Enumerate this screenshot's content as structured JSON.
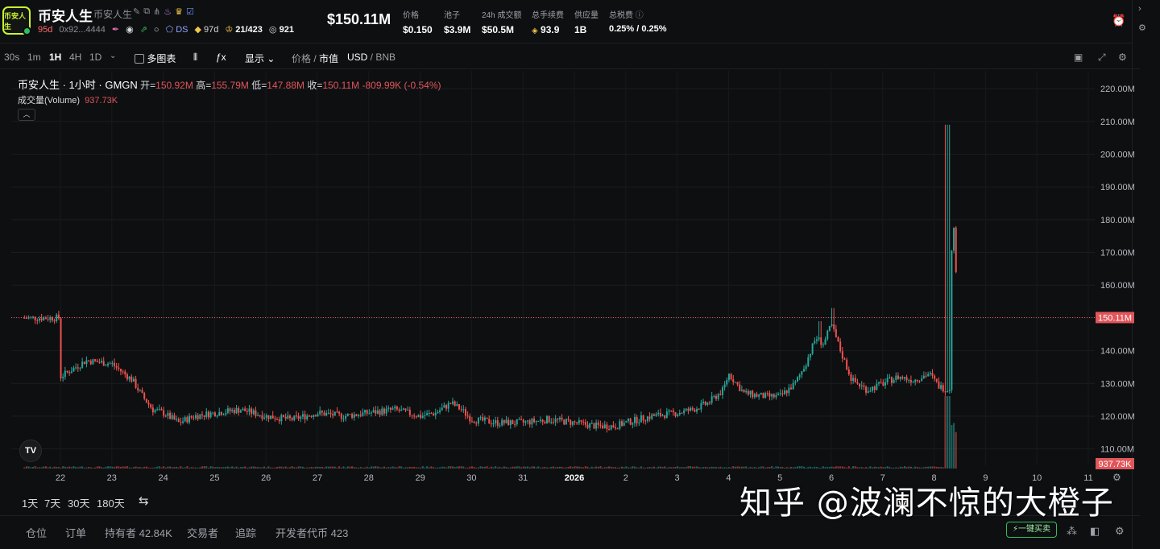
{
  "token": {
    "logo_text": "币安人生",
    "name": "币安人生",
    "subname": "币安人生",
    "age": "95d",
    "address": "0x92...4444",
    "ds_label": "DS",
    "holder_age": "97d",
    "top_count": "21/423",
    "views": "921"
  },
  "stats": {
    "market_cap": "$150.11M",
    "items": [
      {
        "label": "价格",
        "value": "$0.150"
      },
      {
        "label": "池子",
        "value": "$3.9M"
      },
      {
        "label": "24h 成交额",
        "value": "$50.5M"
      },
      {
        "label": "总手续费",
        "value": "93.9"
      },
      {
        "label": "供应量",
        "value": "1B"
      },
      {
        "label": "总税费",
        "value": "0.25% / 0.25%"
      }
    ]
  },
  "toolbar": {
    "intervals": [
      "30s",
      "1m",
      "1H",
      "4H",
      "1D"
    ],
    "active_interval": "1H",
    "multi_chart": "多图表",
    "display": "显示",
    "price_label": "价格",
    "mcap_label": "市值",
    "usd": "USD",
    "bnb": "BNB"
  },
  "legend": {
    "title": "币安人生 · 1小时 · GMGN",
    "open_label": "开=",
    "open": "150.92M",
    "high_label": "高=",
    "high": "155.79M",
    "low_label": "低=",
    "low": "147.88M",
    "close_label": "收=",
    "close": "150.11M",
    "change": "-809.99K (-0.54%)",
    "volume_label": "成交量(Volume)",
    "volume": "937.73K"
  },
  "chart_data": {
    "type": "candlestick",
    "y_unit": "M",
    "ylim": [
      105,
      222
    ],
    "y_ticks": [
      "220.00M",
      "210.00M",
      "200.00M",
      "190.00M",
      "180.00M",
      "170.00M",
      "160.00M",
      "150.00M",
      "140.00M",
      "130.00M",
      "120.00M",
      "110.00M"
    ],
    "x_ticks": [
      "22",
      "23",
      "24",
      "25",
      "26",
      "27",
      "28",
      "29",
      "30",
      "31",
      "2026",
      "2",
      "3",
      "4",
      "5",
      "6",
      "7",
      "8",
      "9",
      "10",
      "11"
    ],
    "last_price_label": "150.11M",
    "last_volume_label": "937.73K",
    "series_close_path": [
      [
        0,
        132
      ],
      [
        0.5,
        137
      ],
      [
        1,
        136
      ],
      [
        1.4,
        131
      ],
      [
        1.6,
        126
      ],
      [
        1.8,
        122
      ],
      [
        2,
        121
      ],
      [
        2.3,
        118
      ],
      [
        2.6,
        120
      ],
      [
        3,
        121
      ],
      [
        3.5,
        122
      ],
      [
        4,
        120
      ],
      [
        4.5,
        119
      ],
      [
        5,
        121
      ],
      [
        5.5,
        120
      ],
      [
        6,
        121
      ],
      [
        6.5,
        122
      ],
      [
        7,
        120
      ],
      [
        7.3,
        121
      ],
      [
        7.6,
        124
      ],
      [
        7.8,
        122
      ],
      [
        8,
        119
      ],
      [
        8.5,
        118
      ],
      [
        9,
        118
      ],
      [
        9.5,
        119
      ],
      [
        10,
        118
      ],
      [
        10.4,
        117
      ],
      [
        10.8,
        117
      ],
      [
        11,
        118
      ],
      [
        11.5,
        120
      ],
      [
        12,
        121
      ],
      [
        12.3,
        122
      ],
      [
        12.6,
        124
      ],
      [
        12.9,
        128
      ],
      [
        13,
        133
      ],
      [
        13.3,
        127
      ],
      [
        13.7,
        126
      ],
      [
        14,
        126
      ],
      [
        14.3,
        130
      ],
      [
        14.5,
        136
      ],
      [
        14.7,
        144
      ],
      [
        14.85,
        142
      ],
      [
        15,
        148
      ],
      [
        15.2,
        139
      ],
      [
        15.4,
        131
      ],
      [
        15.7,
        128
      ],
      [
        16,
        130
      ],
      [
        16.3,
        132
      ],
      [
        16.6,
        131
      ],
      [
        16.9,
        133
      ],
      [
        17.1,
        129
      ],
      [
        17.3,
        128
      ],
      [
        17.35,
        180
      ],
      [
        17.4,
        176
      ],
      [
        17.45,
        150
      ]
    ]
  },
  "range": {
    "options": [
      "1天",
      "7天",
      "30天",
      "180天"
    ]
  },
  "bottom": {
    "tabs": [
      "仓位",
      "订单",
      "持有者 42.84K",
      "交易者",
      "追踪",
      "开发者代币 423"
    ],
    "quick_trade": "一键买卖"
  },
  "watermark": "知乎 @波澜不惊的大橙子",
  "colors": {
    "up": "#26a69a",
    "down": "#ef5350",
    "price_line": "#e0565b",
    "accent_green": "#2fbf5f",
    "logo_border": "#c6f432"
  }
}
